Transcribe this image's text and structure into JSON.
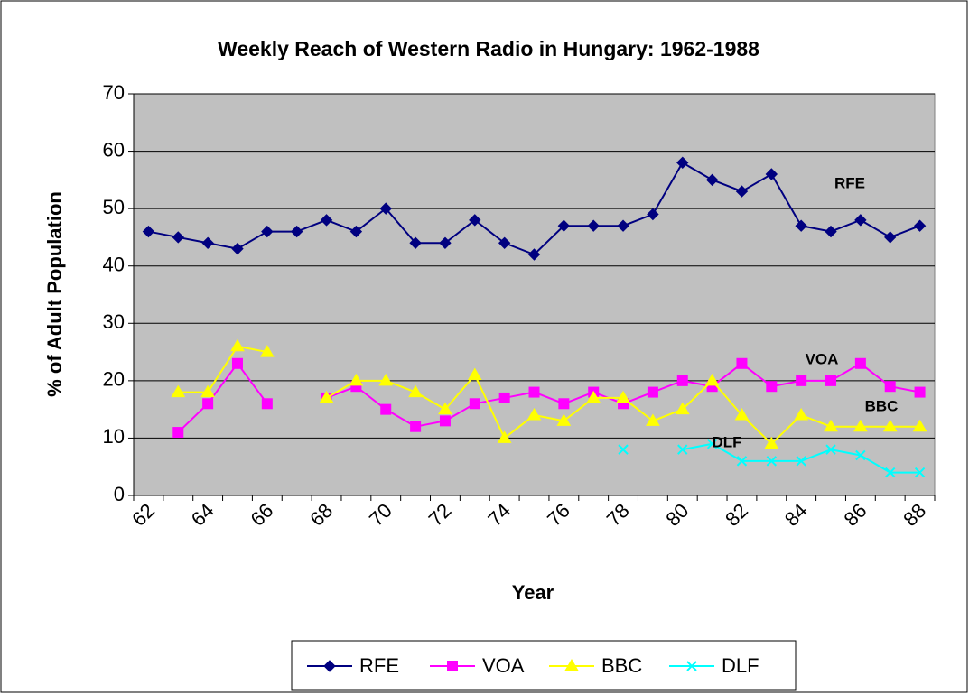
{
  "chart_data": {
    "type": "line",
    "title": "Weekly Reach of Western Radio in Hungary: 1962-1988",
    "xlabel": "Year",
    "ylabel": "% of Adult Population",
    "categories": [
      "62",
      null,
      "64",
      null,
      "66",
      null,
      "68",
      null,
      "70",
      null,
      "72",
      null,
      "74",
      null,
      "76",
      null,
      "78",
      null,
      "80",
      null,
      "82",
      null,
      "84",
      null,
      "86",
      null,
      "88"
    ],
    "series": [
      {
        "name": "RFE",
        "color": "#000080",
        "marker": "diamond",
        "values": [
          46,
          45,
          44,
          43,
          46,
          46,
          48,
          46,
          50,
          44,
          44,
          48,
          44,
          42,
          47,
          47,
          47,
          49,
          58,
          55,
          53,
          56,
          47,
          46,
          48,
          45,
          47
        ]
      },
      {
        "name": "VOA",
        "color": "#ff00ff",
        "marker": "square",
        "values": [
          null,
          11,
          16,
          23,
          16,
          null,
          17,
          19,
          15,
          12,
          13,
          16,
          17,
          18,
          16,
          18,
          16,
          18,
          20,
          19,
          23,
          19,
          20,
          20,
          23,
          19,
          18
        ]
      },
      {
        "name": "BBC",
        "color": "#ffff00",
        "marker": "triangle",
        "values": [
          null,
          18,
          18,
          26,
          25,
          null,
          17,
          20,
          20,
          18,
          15,
          21,
          10,
          14,
          13,
          17,
          17,
          13,
          15,
          20,
          14,
          9,
          14,
          12,
          12,
          12,
          12
        ]
      },
      {
        "name": "DLF",
        "color": "#00ffff",
        "marker": "x",
        "values": [
          null,
          null,
          null,
          null,
          null,
          null,
          null,
          null,
          null,
          null,
          null,
          null,
          null,
          null,
          null,
          null,
          8,
          null,
          8,
          9,
          6,
          6,
          6,
          8,
          7,
          4,
          4
        ]
      }
    ],
    "annotations": [
      "RFE",
      "VOA",
      "BBC",
      "DLF"
    ],
    "ylim": [
      0,
      70
    ],
    "yticks": [
      0,
      10,
      20,
      30,
      40,
      50,
      60,
      70
    ],
    "grid": true,
    "legend": "bottom",
    "background": "#c0c0c0"
  }
}
